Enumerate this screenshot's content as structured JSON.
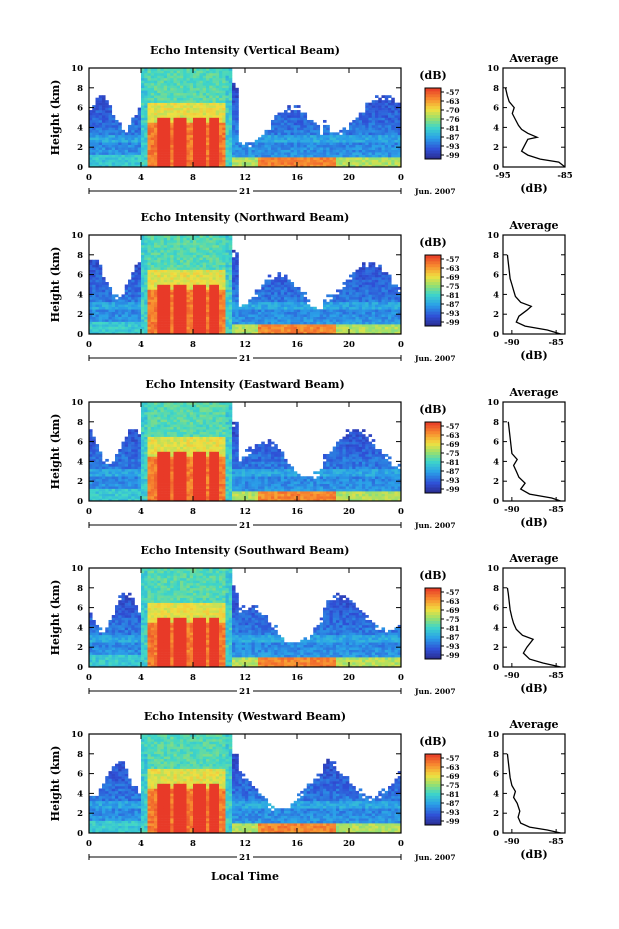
{
  "chart_data": {
    "type": "heatmap",
    "xlabel": "Local Time",
    "x_ticks": [
      "0",
      "4",
      "8",
      "12",
      "16",
      "20",
      "0"
    ],
    "date_label": "21",
    "month_label": "Jun. 2007",
    "ylabel": "Height (km)",
    "y_ticks": [
      "0",
      "2",
      "4",
      "6",
      "8",
      "10"
    ],
    "ylim": [
      0,
      10
    ],
    "xlim": [
      0,
      24
    ],
    "colorbar": {
      "label": "(dB)",
      "ticks": [
        "-57",
        "-63",
        "-69",
        "-75",
        "-81",
        "-87",
        "-93",
        "-99"
      ],
      "range": [
        -102,
        -54
      ]
    },
    "panels": [
      {
        "title": "Echo Intensity (Vertical Beam)",
        "colorbar_ticks": [
          "-57",
          "-63",
          "-70",
          "-76",
          "-81",
          "-87",
          "-93",
          "-99"
        ],
        "avg": {
          "title": "Average",
          "xlabel": "(dB)",
          "x_ticks": [
            "-95",
            "-85"
          ],
          "xlim": [
            -95,
            -85
          ],
          "profile": [
            [
              0,
              -85
            ],
            [
              0.5,
              -86
            ],
            [
              0.8,
              -89
            ],
            [
              1.2,
              -91
            ],
            [
              1.6,
              -92
            ],
            [
              2.2,
              -91.5
            ],
            [
              2.8,
              -91
            ],
            [
              3.0,
              -89.5
            ],
            [
              3.4,
              -91
            ],
            [
              3.8,
              -92
            ],
            [
              4.2,
              -92.5
            ],
            [
              4.8,
              -93
            ],
            [
              5.4,
              -93.5
            ],
            [
              6.0,
              -93.2
            ],
            [
              6.6,
              -94
            ],
            [
              7.2,
              -94.3
            ],
            [
              8.0,
              -94.6
            ]
          ]
        }
      },
      {
        "title": "Echo Intensity (Northward Beam)",
        "colorbar_ticks": [
          "-57",
          "-63",
          "-69",
          "-75",
          "-81",
          "-87",
          "-93",
          "-99"
        ],
        "avg": {
          "title": "Average",
          "xlabel": "(dB)",
          "x_ticks": [
            "-90",
            "-85"
          ],
          "xlim": [
            -91,
            -84
          ],
          "profile": [
            [
              0,
              -84.5
            ],
            [
              0.4,
              -86
            ],
            [
              0.8,
              -88.5
            ],
            [
              1.2,
              -89.5
            ],
            [
              1.8,
              -89.2
            ],
            [
              2.4,
              -88.3
            ],
            [
              2.8,
              -87.8
            ],
            [
              3.2,
              -89
            ],
            [
              3.8,
              -89.6
            ],
            [
              4.4,
              -89.8
            ],
            [
              5.0,
              -90.0
            ],
            [
              5.6,
              -90.2
            ],
            [
              6.4,
              -90.3
            ],
            [
              7.2,
              -90.4
            ],
            [
              8.0,
              -90.5
            ]
          ]
        }
      },
      {
        "title": "Echo Intensity (Eastward Beam)",
        "colorbar_ticks": [
          "-57",
          "-63",
          "-69",
          "-75",
          "-81",
          "-87",
          "-93",
          "-99"
        ],
        "avg": {
          "title": "Average",
          "xlabel": "(dB)",
          "x_ticks": [
            "-90",
            "-85"
          ],
          "xlim": [
            -91,
            -84
          ],
          "profile": [
            [
              0,
              -84.5
            ],
            [
              0.3,
              -85.5
            ],
            [
              0.7,
              -88
            ],
            [
              1.2,
              -89
            ],
            [
              1.8,
              -88.5
            ],
            [
              2.4,
              -89.2
            ],
            [
              3.0,
              -89.5
            ],
            [
              3.6,
              -89.8
            ],
            [
              4.2,
              -89.4
            ],
            [
              4.8,
              -90
            ],
            [
              5.6,
              -90.1
            ],
            [
              6.4,
              -90.2
            ],
            [
              7.2,
              -90.3
            ],
            [
              8.0,
              -90.4
            ]
          ]
        }
      },
      {
        "title": "Echo Intensity (Southward Beam)",
        "colorbar_ticks": [
          "-57",
          "-63",
          "-69",
          "-75",
          "-81",
          "-87",
          "-93",
          "-99"
        ],
        "avg": {
          "title": "Average",
          "xlabel": "(dB)",
          "x_ticks": [
            "-90",
            "-85"
          ],
          "xlim": [
            -91,
            -84
          ],
          "profile": [
            [
              0,
              -84.5
            ],
            [
              0.4,
              -86.5
            ],
            [
              0.8,
              -88
            ],
            [
              1.4,
              -88.7
            ],
            [
              2.0,
              -88.3
            ],
            [
              2.8,
              -87.6
            ],
            [
              3.2,
              -88.8
            ],
            [
              3.8,
              -89.5
            ],
            [
              4.4,
              -89.8
            ],
            [
              5.0,
              -90
            ],
            [
              5.8,
              -90.2
            ],
            [
              6.6,
              -90.3
            ],
            [
              7.4,
              -90.4
            ],
            [
              8.0,
              -90.5
            ]
          ]
        }
      },
      {
        "title": "Echo Intensity (Westward Beam)",
        "colorbar_ticks": [
          "-57",
          "-63",
          "-69",
          "-75",
          "-81",
          "-87",
          "-93",
          "-99"
        ],
        "avg": {
          "title": "Average",
          "xlabel": "(dB)",
          "x_ticks": [
            "-90",
            "-85"
          ],
          "xlim": [
            -91,
            -84
          ],
          "profile": [
            [
              0,
              -84.5
            ],
            [
              0.3,
              -86
            ],
            [
              0.6,
              -88
            ],
            [
              1.0,
              -89
            ],
            [
              1.6,
              -89.3
            ],
            [
              2.2,
              -89.1
            ],
            [
              3.0,
              -89.4
            ],
            [
              3.6,
              -89.8
            ],
            [
              4.2,
              -89.6
            ],
            [
              4.8,
              -90
            ],
            [
              5.6,
              -90.2
            ],
            [
              6.4,
              -90.3
            ],
            [
              7.2,
              -90.4
            ],
            [
              8.0,
              -90.5
            ]
          ]
        }
      }
    ]
  }
}
